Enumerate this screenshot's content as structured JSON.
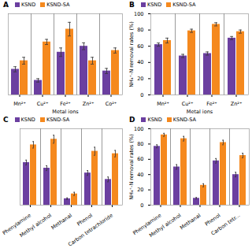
{
  "chart_data": [
    {
      "type": "bar",
      "title": "A",
      "xlabel": "Metal ions",
      "categories": [
        "Mn²⁺",
        "Cu²⁺",
        "Fe²⁺",
        "Zn²⁺",
        "Co²⁺"
      ],
      "series": [
        {
          "name": "KSND",
          "color": "#6b3fa0",
          "values": [
            30,
            17,
            50,
            57,
            28
          ],
          "errors": [
            3,
            2,
            5,
            4,
            3
          ]
        },
        {
          "name": "KSND-SA",
          "color": "#f5891e",
          "values": [
            40,
            62,
            77,
            40,
            52
          ],
          "errors": [
            4,
            3,
            8,
            4,
            3
          ]
        }
      ],
      "ylim": [
        0,
        95
      ],
      "yticks": [],
      "tick_labels": "x",
      "legend": "upper left"
    },
    {
      "type": "bar",
      "title": "B",
      "xlabel": "Metal ions",
      "ylabel": "NH₄⁺-N removal rates (%)",
      "categories": [
        "Mn²⁺",
        "Cu²⁺",
        "Fe²⁺",
        "Zn²⁺"
      ],
      "series": [
        {
          "name": "KSND",
          "color": "#6b3fa0",
          "values": [
            62,
            48,
            51,
            70
          ],
          "errors": [
            2,
            2,
            2,
            2
          ]
        },
        {
          "name": "KSND-SA",
          "color": "#f5891e",
          "values": [
            67,
            79,
            87,
            78
          ],
          "errors": [
            3,
            2,
            2,
            2
          ]
        }
      ],
      "ylim": [
        0,
        100
      ],
      "yticks": [
        0,
        20,
        40,
        60,
        80,
        100
      ],
      "legend": "upper left"
    },
    {
      "type": "bar",
      "title": "C",
      "categories": [
        "Phenylamine",
        "Methyl alcohol",
        "Methanal",
        "Phenol",
        "Carbon tetrachloride"
      ],
      "series": [
        {
          "name": "KSND",
          "color": "#6b3fa0",
          "values": [
            53,
            46,
            8,
            40,
            32
          ],
          "errors": [
            3,
            3,
            1,
            3,
            3
          ]
        },
        {
          "name": "KSND-SA",
          "color": "#f5891e",
          "values": [
            75,
            82,
            14,
            67,
            64
          ],
          "errors": [
            4,
            5,
            2,
            5,
            4
          ]
        }
      ],
      "ylim": [
        0,
        95
      ],
      "yticks": [],
      "tick_labels": "x",
      "legend": "upper left"
    },
    {
      "type": "bar",
      "title": "D",
      "ylabel": "NH₄⁺-N removal rates (%)",
      "categories": [
        "Phenylamine",
        "Methyl alcohol",
        "Methanal",
        "Phenol",
        "Carbon tetr..."
      ],
      "series": [
        {
          "name": "KSND",
          "color": "#6b3fa0",
          "values": [
            77,
            50,
            9,
            58,
            40
          ],
          "errors": [
            2,
            3,
            1,
            3,
            3
          ]
        },
        {
          "name": "KSND-SA",
          "color": "#f5891e",
          "values": [
            92,
            87,
            26,
            82,
            65
          ],
          "errors": [
            2,
            3,
            2,
            3,
            3
          ]
        }
      ],
      "ylim": [
        0,
        100
      ],
      "yticks": [
        0,
        20,
        40,
        60,
        80,
        100
      ],
      "legend": "upper left"
    }
  ]
}
